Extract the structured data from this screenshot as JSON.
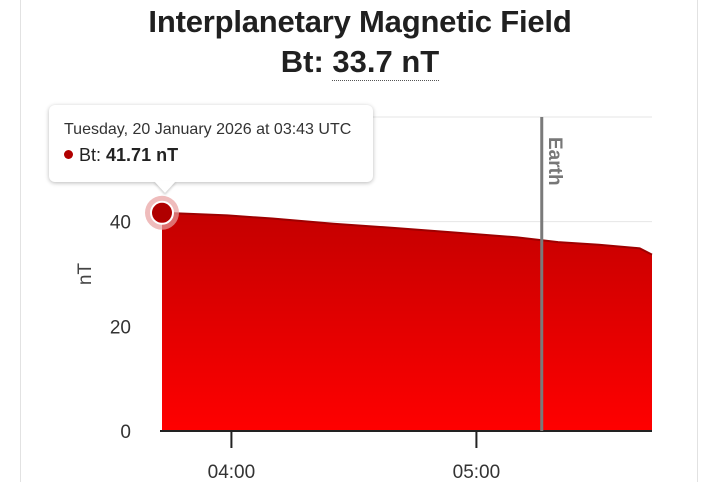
{
  "chart_data": {
    "type": "area",
    "title": "Interplanetary Magnetic Field",
    "subtitle_label": "Bt:",
    "subtitle_value": "33.7 nT",
    "ylabel": "nT",
    "ylim": [
      0,
      60
    ],
    "yticks": [
      0,
      20,
      40
    ],
    "xlim": [
      "03:43",
      "05:43"
    ],
    "xticks": [
      "04:00",
      "05:00"
    ],
    "series": [
      {
        "name": "Bt",
        "color": "#dd0000",
        "x": [
          "03:43",
          "03:50",
          "03:59",
          "04:10",
          "04:25",
          "04:40",
          "04:55",
          "05:10",
          "05:20",
          "05:30",
          "05:40",
          "05:43"
        ],
        "y": [
          41.7,
          41.5,
          41.2,
          40.6,
          39.6,
          38.8,
          37.9,
          37.0,
          36.1,
          35.6,
          34.9,
          33.7
        ]
      }
    ],
    "plot_line": {
      "label": "Earth",
      "x": "05:16"
    },
    "tooltip": {
      "date": "Tuesday, 20 January 2026 at 03:43 UTC",
      "series_label": "Bt:",
      "value": "41.71 nT"
    }
  }
}
